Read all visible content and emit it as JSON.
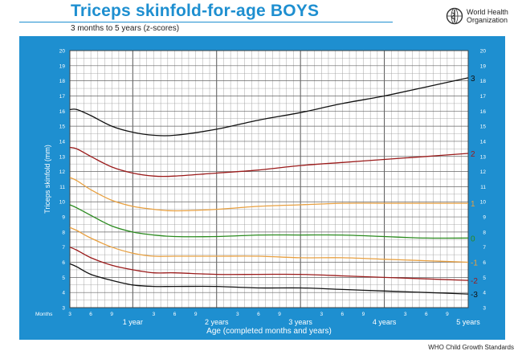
{
  "header": {
    "title": "Triceps skinfold-for-age  BOYS",
    "subtitle": "3 months to 5 years (z-scores)",
    "org_line1": "World Health",
    "org_line2": "Organization",
    "logo_icon": "who-emblem-icon"
  },
  "footer": {
    "text": "WHO Child Growth Standards"
  },
  "colors": {
    "panel": "#1e8fd0",
    "grid": "#9a9a9a",
    "title": "#1e8fd0",
    "z3": "#111111",
    "z2": "#9b1b1b",
    "z1": "#e8a040",
    "z0": "#2a8a1e"
  },
  "chart_data": {
    "type": "line",
    "title": "Triceps skinfold-for-age  BOYS",
    "subtitle": "3 months to 5 years (z-scores)",
    "xlabel": "Age (completed months and years)",
    "ylabel": "Triceps skinfold (mm)",
    "x_unit_label": "Months",
    "xlim": [
      3,
      60
    ],
    "ylim": [
      3,
      20
    ],
    "grid": true,
    "x_month_ticks": [
      {
        "x": 3,
        "label": "3"
      },
      {
        "x": 6,
        "label": "6"
      },
      {
        "x": 9,
        "label": "9"
      },
      {
        "x": 15,
        "label": "3"
      },
      {
        "x": 18,
        "label": "6"
      },
      {
        "x": 21,
        "label": "9"
      },
      {
        "x": 27,
        "label": "3"
      },
      {
        "x": 30,
        "label": "6"
      },
      {
        "x": 33,
        "label": "9"
      },
      {
        "x": 39,
        "label": "3"
      },
      {
        "x": 42,
        "label": "6"
      },
      {
        "x": 45,
        "label": "9"
      },
      {
        "x": 51,
        "label": "3"
      },
      {
        "x": 54,
        "label": "6"
      },
      {
        "x": 57,
        "label": "9"
      }
    ],
    "x_year_ticks": [
      {
        "x": 12,
        "label": "1 year"
      },
      {
        "x": 24,
        "label": "2 years"
      },
      {
        "x": 36,
        "label": "3 years"
      },
      {
        "x": 48,
        "label": "4 years"
      },
      {
        "x": 60,
        "label": "5 years"
      }
    ],
    "y_ticks": [
      3,
      4,
      5,
      6,
      7,
      8,
      9,
      10,
      11,
      12,
      13,
      14,
      15,
      16,
      17,
      18,
      19,
      20
    ],
    "x": [
      3,
      4,
      6,
      9,
      12,
      15,
      18,
      24,
      30,
      36,
      42,
      48,
      54,
      60
    ],
    "series": [
      {
        "name": "3",
        "color_key": "z3",
        "values": [
          16.1,
          16.1,
          15.7,
          15.0,
          14.6,
          14.4,
          14.4,
          14.8,
          15.4,
          15.9,
          16.5,
          17.0,
          17.6,
          18.2
        ]
      },
      {
        "name": "2",
        "color_key": "z2",
        "values": [
          13.6,
          13.5,
          13.0,
          12.3,
          11.9,
          11.7,
          11.7,
          11.9,
          12.1,
          12.4,
          12.6,
          12.8,
          13.0,
          13.2
        ]
      },
      {
        "name": "1",
        "color_key": "z1",
        "values": [
          11.6,
          11.4,
          10.8,
          10.1,
          9.7,
          9.5,
          9.4,
          9.5,
          9.7,
          9.8,
          9.9,
          9.9,
          9.9,
          9.9
        ]
      },
      {
        "name": "0",
        "color_key": "z0",
        "values": [
          9.8,
          9.6,
          9.1,
          8.4,
          8.0,
          7.8,
          7.7,
          7.7,
          7.8,
          7.8,
          7.8,
          7.7,
          7.6,
          7.6
        ]
      },
      {
        "name": "-1",
        "color_key": "z1",
        "values": [
          8.3,
          8.1,
          7.6,
          7.0,
          6.6,
          6.4,
          6.4,
          6.4,
          6.4,
          6.3,
          6.3,
          6.2,
          6.1,
          6.0
        ]
      },
      {
        "name": "-2",
        "color_key": "z2",
        "values": [
          7.0,
          6.8,
          6.3,
          5.8,
          5.5,
          5.3,
          5.3,
          5.2,
          5.2,
          5.2,
          5.1,
          5.0,
          4.9,
          4.8
        ]
      },
      {
        "name": "-3",
        "color_key": "z3",
        "values": [
          5.9,
          5.7,
          5.2,
          4.8,
          4.5,
          4.4,
          4.4,
          4.4,
          4.3,
          4.3,
          4.2,
          4.1,
          4.0,
          3.9
        ]
      }
    ]
  }
}
